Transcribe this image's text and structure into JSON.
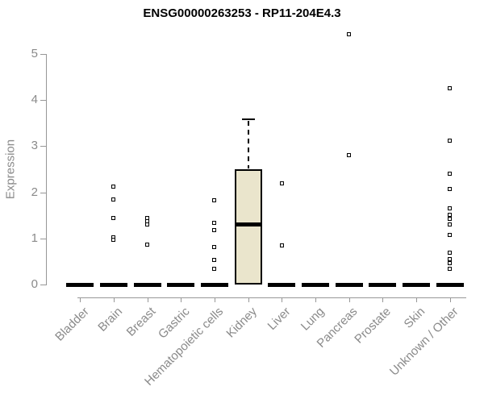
{
  "title": "ENSG00000263253 - RP11-204E4.3",
  "chart_data": {
    "type": "boxplot",
    "title": "ENSG00000263253 - RP11-204E4.3",
    "xlabel": "",
    "ylabel": "Expression",
    "ylim": [
      0,
      5.5
    ],
    "yticks": [
      0,
      1,
      2,
      3,
      4,
      5
    ],
    "grid": false,
    "legend": "none",
    "categories": [
      "Bladder",
      "Brain",
      "Breast",
      "Gastric",
      "Hematopoietic cells",
      "Kidney",
      "Liver",
      "Lung",
      "Pancreas",
      "Prostate",
      "Skin",
      "Unknown / Other"
    ],
    "boxes": [
      {
        "category": "Bladder",
        "q1": 0,
        "median": 0,
        "q3": 0,
        "whisker_low": 0,
        "whisker_high": 0,
        "outliers": []
      },
      {
        "category": "Brain",
        "q1": 0,
        "median": 0,
        "q3": 0,
        "whisker_low": 0,
        "whisker_high": 0,
        "outliers": [
          2.13,
          1.85,
          1.44,
          1.02,
          0.97
        ]
      },
      {
        "category": "Breast",
        "q1": 0,
        "median": 0,
        "q3": 0,
        "whisker_low": 0,
        "whisker_high": 0,
        "outliers": [
          1.45,
          1.38,
          1.31,
          0.87
        ]
      },
      {
        "category": "Gastric",
        "q1": 0,
        "median": 0,
        "q3": 0,
        "whisker_low": 0,
        "whisker_high": 0,
        "outliers": []
      },
      {
        "category": "Hematopoietic cells",
        "q1": 0,
        "median": 0,
        "q3": 0,
        "whisker_low": 0,
        "whisker_high": 0,
        "outliers": [
          1.82,
          1.34,
          1.19,
          0.81,
          0.54,
          0.35
        ]
      },
      {
        "category": "Kidney",
        "q1": 0,
        "median": 1.3,
        "q3": 2.5,
        "whisker_low": 0,
        "whisker_high": 3.6,
        "outliers": []
      },
      {
        "category": "Liver",
        "q1": 0,
        "median": 0,
        "q3": 0,
        "whisker_low": 0,
        "whisker_high": 0,
        "outliers": [
          2.2,
          0.85
        ]
      },
      {
        "category": "Lung",
        "q1": 0,
        "median": 0,
        "q3": 0,
        "whisker_low": 0,
        "whisker_high": 0,
        "outliers": []
      },
      {
        "category": "Pancreas",
        "q1": 0,
        "median": 0,
        "q3": 0,
        "whisker_low": 0,
        "whisker_high": 0,
        "outliers": [
          5.42,
          2.81
        ]
      },
      {
        "category": "Prostate",
        "q1": 0,
        "median": 0,
        "q3": 0,
        "whisker_low": 0,
        "whisker_high": 0,
        "outliers": []
      },
      {
        "category": "Skin",
        "q1": 0,
        "median": 0,
        "q3": 0,
        "whisker_low": 0,
        "whisker_high": 0,
        "outliers": []
      },
      {
        "category": "Unknown / Other",
        "q1": 0,
        "median": 0,
        "q3": 0,
        "whisker_low": 0,
        "whisker_high": 0,
        "outliers": [
          4.25,
          3.12,
          2.41,
          2.07,
          1.65,
          1.51,
          1.42,
          1.31,
          1.08,
          0.7,
          0.56,
          0.46,
          0.35
        ]
      }
    ],
    "colors": {
      "box_fill": "#EAE5CC",
      "box_border": "#000000",
      "median": "#000000",
      "point": "#000000",
      "axis": "#979797",
      "tick_label": "#8a8a8a",
      "title": "#000000",
      "background": "#ffffff"
    }
  }
}
